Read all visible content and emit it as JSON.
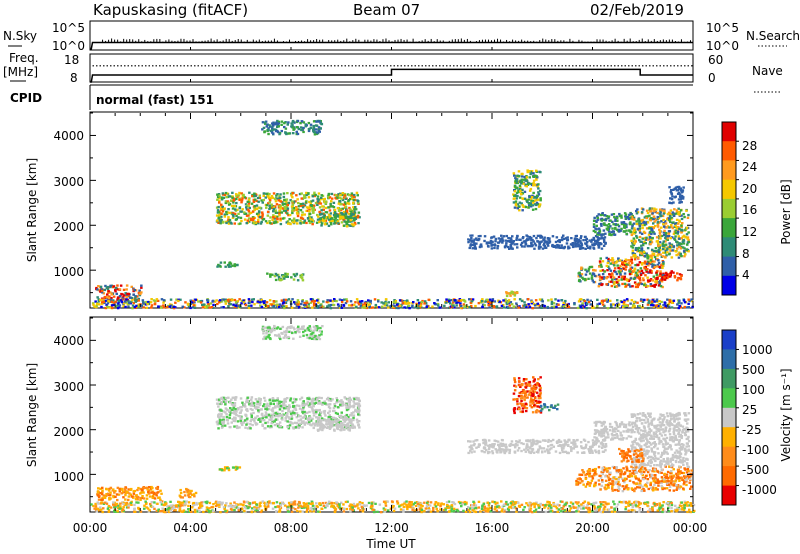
{
  "header": {
    "station": "Kapuskasing (fitACF)",
    "beam": "Beam 07",
    "date": "02/Feb/2019"
  },
  "noise_panel": {
    "left_label": "N.Sky",
    "left_ticks": [
      "10^5",
      "10^0"
    ],
    "right_label": "N.Search",
    "right_ticks": [
      "10^5",
      "10^0"
    ]
  },
  "freq_panel": {
    "left_label_1": "Freq.",
    "left_label_2": "[MHz]",
    "left_ticks": [
      "18",
      "8"
    ],
    "right_label": "Nave",
    "right_ticks": [
      "60",
      "0"
    ]
  },
  "cpid_panel": {
    "label": "CPID",
    "mode_text": "normal (fast) 151"
  },
  "x_axis": {
    "label": "Time UT",
    "ticks": [
      "00:00",
      "04:00",
      "08:00",
      "12:00",
      "16:00",
      "20:00",
      "00:00"
    ]
  },
  "power_panel": {
    "ylabel": "Slant Range [km]",
    "yticks": [
      "4000",
      "3000",
      "2000",
      "1000"
    ],
    "colorbar_label": "Power [dB]",
    "colorbar_ticks": [
      "28",
      "24",
      "20",
      "16",
      "12",
      "8",
      "4"
    ],
    "colorbar_colors": [
      "#e00000",
      "#ff5a00",
      "#ff9a1e",
      "#f5c800",
      "#9acd32",
      "#3aa63a",
      "#2e8b76",
      "#2f5fa8",
      "#0000e6"
    ]
  },
  "velocity_panel": {
    "ylabel": "Slant Range [km]",
    "yticks": [
      "4000",
      "3000",
      "2000",
      "1000"
    ],
    "colorbar_label": "Velocity [m s⁻¹]",
    "colorbar_ticks": [
      "1000",
      "500",
      "100",
      "25",
      "-25",
      "-100",
      "-500",
      "-1000"
    ],
    "colorbar_colors": [
      "#1a3fc8",
      "#2e6ea8",
      "#3f9a63",
      "#4cc94c",
      "#c8c8c8",
      "#ffb000",
      "#ff8c1a",
      "#ff6a00",
      "#e80000"
    ]
  },
  "chart_data": [
    {
      "type": "line",
      "name": "noise",
      "title": "",
      "x_unit": "hours UT",
      "xlim": [
        0,
        24
      ],
      "series": [
        {
          "x": [
            0,
            0.05,
            0.1,
            24
          ],
          "y": [
            0.1,
            0.2,
            1.3,
            1.3
          ]
        }
      ],
      "ylim_log10": [
        0,
        5
      ]
    },
    {
      "type": "line",
      "name": "frequency_nave",
      "title": "",
      "x_unit": "hours UT",
      "xlim": [
        0,
        24
      ],
      "series": [
        {
          "x": [
            0,
            0.05,
            0.1,
            12,
            12,
            21.9,
            21.9,
            24
          ],
          "y": [
            8,
            8,
            10.5,
            10.5,
            12.5,
            12.5,
            10.5,
            10.5
          ],
          "units": "MHz"
        },
        {
          "x": [
            0.1,
            24
          ],
          "y": [
            13.8,
            13.8
          ],
          "dotted": true,
          "units": "MHz-scaled"
        }
      ],
      "ylim": [
        8,
        18
      ]
    },
    {
      "type": "heatmap",
      "name": "power",
      "xlabel": "Time UT",
      "ylabel": "Slant Range [km]",
      "xlim": [
        0,
        24
      ],
      "ylim": [
        180,
        4500
      ],
      "color_scale": "Power [dB]",
      "regions": [
        {
          "t0": 5.0,
          "t1": 10.7,
          "r0": 2050,
          "r1": 2750,
          "cls": [
            1,
            3,
            4,
            5,
            6
          ]
        },
        {
          "t0": 9.0,
          "t1": 10.5,
          "r0": 2000,
          "r1": 2300,
          "cls": [
            3,
            5,
            6
          ]
        },
        {
          "t0": 6.8,
          "t1": 9.2,
          "r0": 4050,
          "r1": 4350,
          "cls": [
            5,
            6,
            7
          ]
        },
        {
          "t0": 0.2,
          "t1": 2.0,
          "r0": 350,
          "r1": 700,
          "cls": [
            0,
            1,
            2,
            6,
            7
          ]
        },
        {
          "t0": 0.0,
          "t1": 24.0,
          "r0": 180,
          "r1": 380,
          "cls": [
            1,
            3,
            4,
            6,
            7,
            8
          ]
        },
        {
          "t0": 5.0,
          "t1": 6.0,
          "r0": 1100,
          "r1": 1200,
          "cls": [
            5,
            6
          ]
        },
        {
          "t0": 7.0,
          "t1": 8.5,
          "r0": 800,
          "r1": 950,
          "cls": [
            4,
            5,
            6
          ]
        },
        {
          "t0": 16.8,
          "t1": 17.9,
          "r0": 2350,
          "r1": 3250,
          "cls": [
            3,
            5,
            6,
            7
          ]
        },
        {
          "t0": 15.0,
          "t1": 20.5,
          "r0": 1500,
          "r1": 1800,
          "cls": [
            7
          ]
        },
        {
          "t0": 19.4,
          "t1": 20.1,
          "r0": 750,
          "r1": 1100,
          "cls": [
            2,
            5,
            7
          ]
        },
        {
          "t0": 20.2,
          "t1": 22.8,
          "r0": 650,
          "r1": 1300,
          "cls": [
            0,
            1,
            2,
            3,
            5,
            7
          ]
        },
        {
          "t0": 21.5,
          "t1": 23.8,
          "r0": 1300,
          "r1": 2400,
          "cls": [
            2,
            3,
            5,
            6,
            7
          ]
        },
        {
          "t0": 22.5,
          "t1": 23.5,
          "r0": 800,
          "r1": 1000,
          "cls": [
            0,
            1
          ]
        },
        {
          "t0": 23.0,
          "t1": 23.6,
          "r0": 2500,
          "r1": 2900,
          "cls": [
            7
          ]
        },
        {
          "t0": 20.0,
          "t1": 21.5,
          "r0": 1800,
          "r1": 2300,
          "cls": [
            5,
            7
          ]
        },
        {
          "t0": 16.5,
          "t1": 17.0,
          "r0": 450,
          "r1": 550,
          "cls": [
            2,
            4
          ]
        }
      ]
    },
    {
      "type": "heatmap",
      "name": "velocity",
      "xlabel": "Time UT",
      "ylabel": "Slant Range [km]",
      "xlim": [
        0,
        24
      ],
      "ylim": [
        180,
        4500
      ],
      "color_scale": "Velocity [m s-1]",
      "regions": [
        {
          "t0": 5.0,
          "t1": 10.7,
          "r0": 2050,
          "r1": 2750,
          "cls": [
            4,
            4,
            4,
            3
          ]
        },
        {
          "t0": 9.0,
          "t1": 10.5,
          "r0": 2000,
          "r1": 2300,
          "cls": [
            4,
            4
          ]
        },
        {
          "t0": 6.8,
          "t1": 9.2,
          "r0": 4050,
          "r1": 4350,
          "cls": [
            4,
            4,
            3
          ]
        },
        {
          "t0": 0.2,
          "t1": 2.8,
          "r0": 450,
          "r1": 750,
          "cls": [
            5,
            6,
            7
          ]
        },
        {
          "t0": 3.5,
          "t1": 4.2,
          "r0": 500,
          "r1": 700,
          "cls": [
            5,
            6
          ]
        },
        {
          "t0": 0.0,
          "t1": 24.0,
          "r0": 180,
          "r1": 420,
          "cls": [
            3,
            4,
            5,
            5,
            6
          ]
        },
        {
          "t0": 5.0,
          "t1": 6.0,
          "r0": 1100,
          "r1": 1200,
          "cls": [
            3,
            5
          ]
        },
        {
          "t0": 16.8,
          "t1": 17.9,
          "r0": 2400,
          "r1": 3200,
          "cls": [
            6,
            7,
            8
          ]
        },
        {
          "t0": 17.9,
          "t1": 18.6,
          "r0": 2450,
          "r1": 2600,
          "cls": [
            2,
            1
          ]
        },
        {
          "t0": 15.0,
          "t1": 20.5,
          "r0": 1500,
          "r1": 1800,
          "cls": [
            4
          ]
        },
        {
          "t0": 19.3,
          "t1": 20.1,
          "r0": 750,
          "r1": 1150,
          "cls": [
            5,
            6,
            7
          ]
        },
        {
          "t0": 20.2,
          "t1": 23.9,
          "r0": 650,
          "r1": 1200,
          "cls": [
            5,
            6,
            7,
            7,
            4
          ]
        },
        {
          "t0": 21.5,
          "t1": 23.8,
          "r0": 1200,
          "r1": 2400,
          "cls": [
            4,
            4,
            4
          ]
        },
        {
          "t0": 21.0,
          "t1": 22.0,
          "r0": 1300,
          "r1": 1600,
          "cls": [
            6,
            7
          ]
        },
        {
          "t0": 20.0,
          "t1": 21.5,
          "r0": 1800,
          "r1": 2200,
          "cls": [
            4
          ]
        }
      ]
    }
  ]
}
